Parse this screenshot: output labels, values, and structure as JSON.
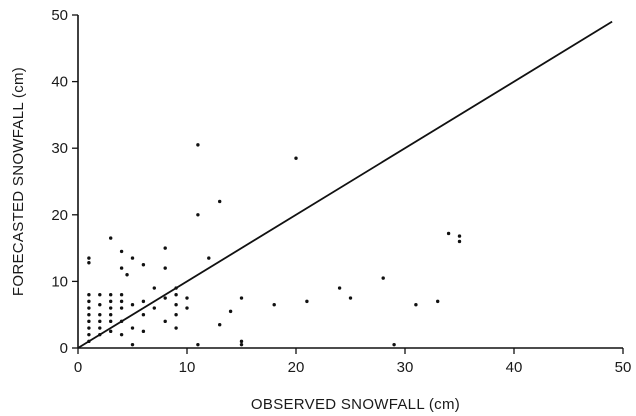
{
  "chart_data": {
    "type": "scatter",
    "xlabel": "OBSERVED SNOWFALL (cm)",
    "ylabel": "FORECASTED SNOWFALL (cm)",
    "xlim": [
      0,
      50
    ],
    "ylim": [
      0,
      50
    ],
    "xticks": [
      0,
      10,
      20,
      30,
      40,
      50
    ],
    "yticks": [
      0,
      10,
      20,
      30,
      40,
      50
    ],
    "grid": false,
    "legend": "none",
    "reference_line": {
      "from": [
        0,
        0
      ],
      "to": [
        49,
        49
      ]
    },
    "series": [
      {
        "points": [
          [
            1,
            13.5
          ],
          [
            1,
            12.8
          ],
          [
            1,
            8
          ],
          [
            1,
            7
          ],
          [
            1,
            6
          ],
          [
            1,
            5
          ],
          [
            1,
            4
          ],
          [
            1,
            3
          ],
          [
            1,
            2
          ],
          [
            1,
            1
          ],
          [
            2,
            8
          ],
          [
            2,
            6.5
          ],
          [
            2,
            5
          ],
          [
            2,
            4
          ],
          [
            2,
            3
          ],
          [
            2,
            2
          ],
          [
            3,
            16.5
          ],
          [
            3,
            8
          ],
          [
            3,
            7
          ],
          [
            3,
            6
          ],
          [
            3,
            5
          ],
          [
            3,
            4
          ],
          [
            3,
            2.5
          ],
          [
            4,
            14.5
          ],
          [
            4,
            12
          ],
          [
            4,
            8
          ],
          [
            4,
            7
          ],
          [
            4,
            6
          ],
          [
            4,
            4
          ],
          [
            4,
            2
          ],
          [
            4.5,
            11
          ],
          [
            5,
            13.5
          ],
          [
            5,
            6.5
          ],
          [
            5,
            3
          ],
          [
            5,
            0.5
          ],
          [
            6,
            12.5
          ],
          [
            6,
            7
          ],
          [
            6,
            5
          ],
          [
            6,
            2.5
          ],
          [
            7,
            9
          ],
          [
            7,
            6
          ],
          [
            8,
            15
          ],
          [
            8,
            12
          ],
          [
            8,
            7.5
          ],
          [
            8,
            4
          ],
          [
            9,
            9
          ],
          [
            9,
            8
          ],
          [
            9,
            6.5
          ],
          [
            9,
            5
          ],
          [
            9,
            3
          ],
          [
            10,
            7.5
          ],
          [
            10,
            6
          ],
          [
            11,
            30.5
          ],
          [
            11,
            20
          ],
          [
            11,
            0.5
          ],
          [
            12,
            13.5
          ],
          [
            13,
            22
          ],
          [
            13,
            3.5
          ],
          [
            14,
            5.5
          ],
          [
            15,
            7.5
          ],
          [
            15,
            1
          ],
          [
            15,
            0.5
          ],
          [
            18,
            6.5
          ],
          [
            20,
            28.5
          ],
          [
            21,
            7
          ],
          [
            24,
            9
          ],
          [
            25,
            7.5
          ],
          [
            28,
            10.5
          ],
          [
            29,
            0.5
          ],
          [
            31,
            6.5
          ],
          [
            33,
            7
          ],
          [
            34,
            17.2
          ],
          [
            35,
            16.8
          ],
          [
            35,
            16
          ]
        ]
      }
    ]
  }
}
